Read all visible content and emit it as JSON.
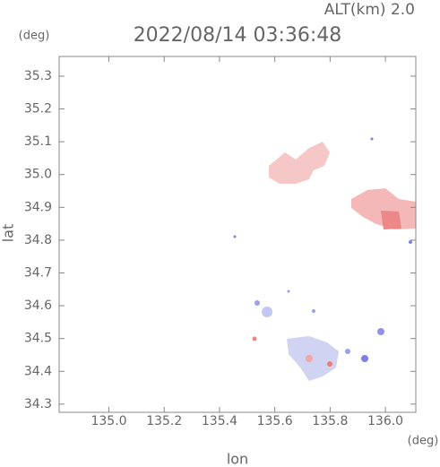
{
  "chart_data": {
    "type": "map",
    "altitude_label": "ALT(km) 2.0",
    "title": "2022/08/14 03:36:48",
    "ylabel": "lat",
    "yunit": "(deg)",
    "xlabel": "lon",
    "xunit": "(deg)",
    "xlim": [
      134.82,
      136.11
    ],
    "xticks": [
      {
        "value": 135,
        "label": "135.0"
      },
      135.2,
      135.4,
      135.6,
      135.8,
      {
        "value": 136,
        "label": "136.0"
      }
    ],
    "ylim": [
      34.275,
      35.36
    ],
    "yticks": [
      34.3,
      34.4,
      34.5,
      34.6,
      34.7,
      34.8,
      34.9,
      {
        "value": 35,
        "label": "35.0"
      },
      35.1,
      35.2,
      35.3
    ],
    "frame_color": "#888888",
    "text_color": "#666666"
  }
}
